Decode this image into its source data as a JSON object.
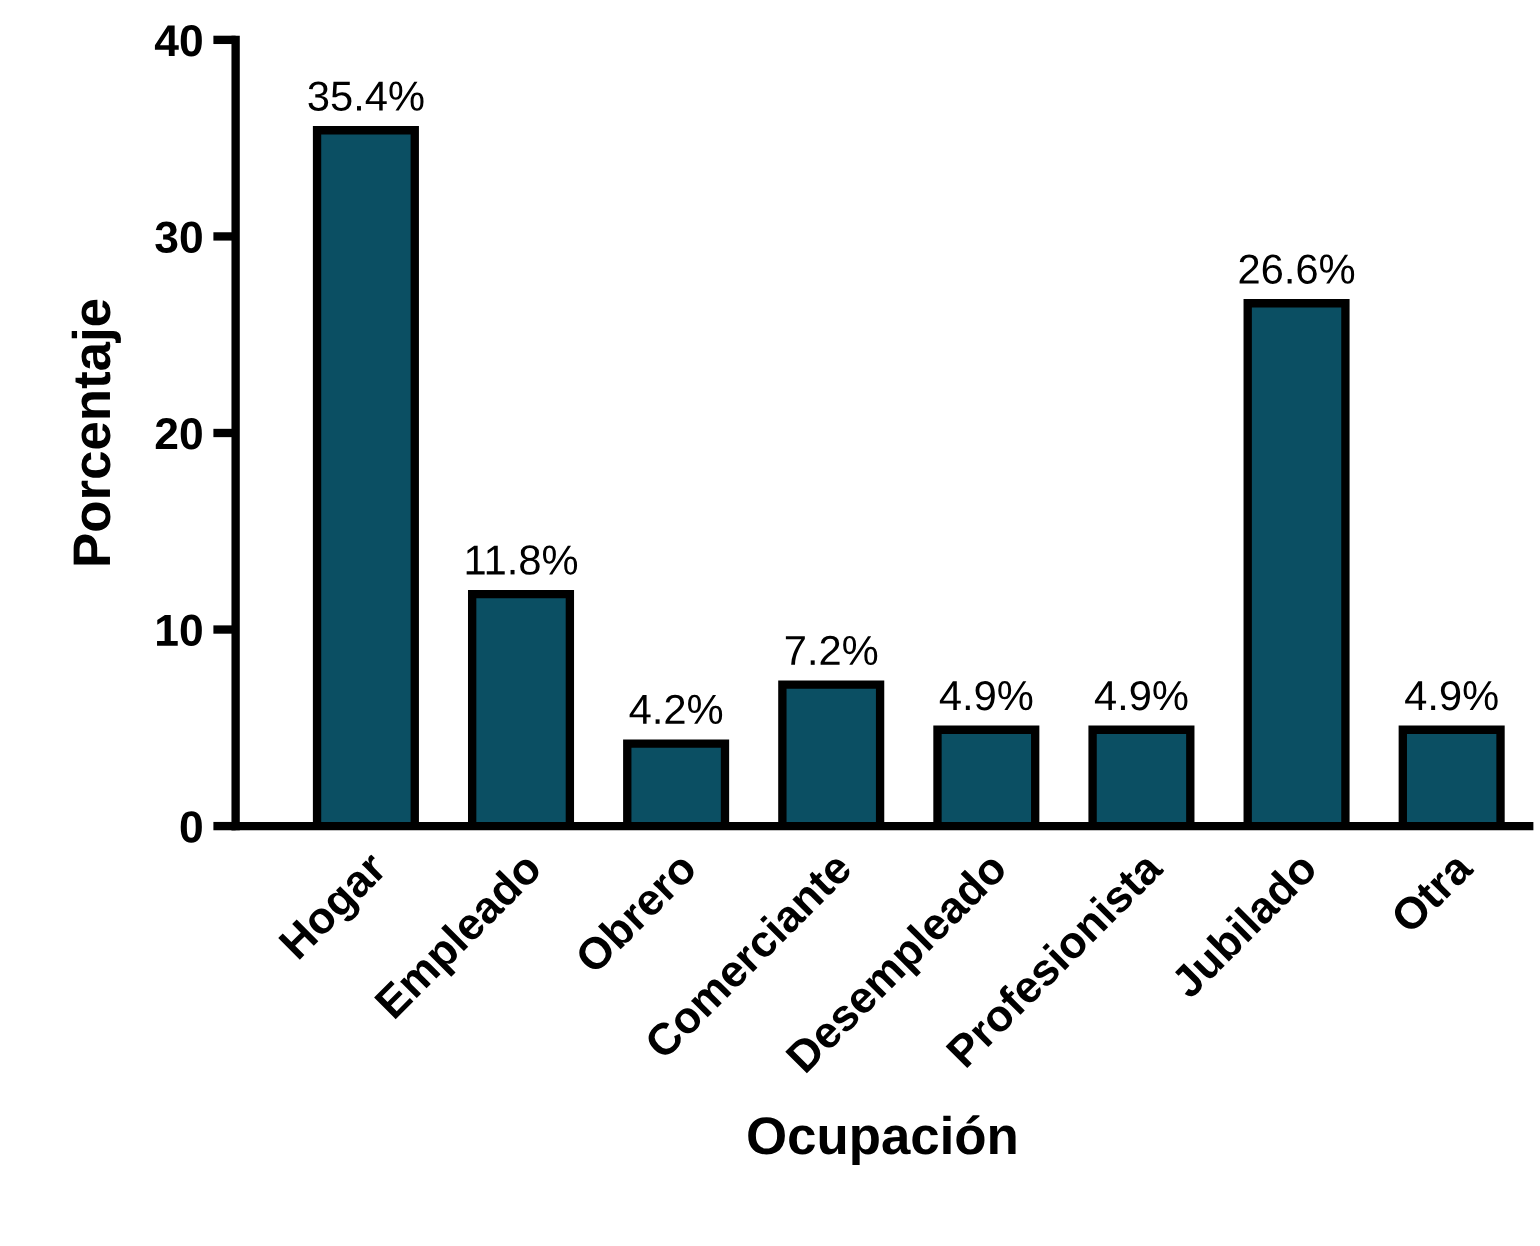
{
  "chart_data": {
    "type": "bar",
    "xlabel": "Ocupación",
    "ylabel": "Porcentaje",
    "categories": [
      "Hogar",
      "Empleado",
      "Obrero",
      "Comerciante",
      "Desempleado",
      "Profesionista",
      "Jubilado",
      "Otra"
    ],
    "values": [
      35.4,
      11.8,
      4.2,
      7.2,
      4.9,
      4.9,
      26.6,
      4.9
    ],
    "value_labels": [
      "35.4%",
      "11.8%",
      "4.2%",
      "7.2%",
      "4.9%",
      "4.9%",
      "26.6%",
      "4.9%"
    ],
    "color": "#0b4f63",
    "ylim": [
      0,
      40
    ],
    "yticks": [
      0,
      10,
      20,
      30,
      40
    ],
    "grid": false,
    "legend": false
  }
}
